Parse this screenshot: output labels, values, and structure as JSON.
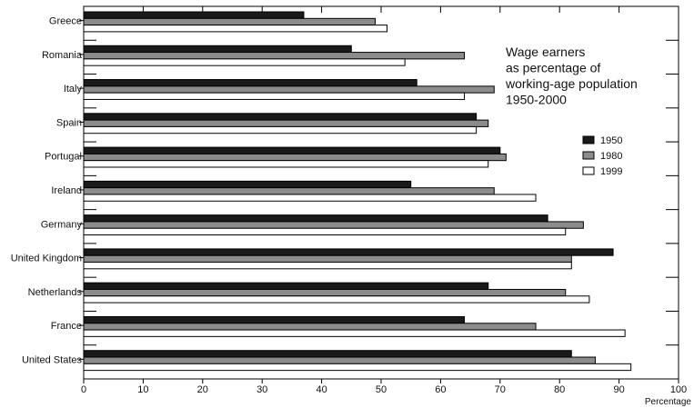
{
  "chart_data": {
    "type": "bar",
    "orientation": "horizontal",
    "title_lines": [
      "Wage earners",
      "as percentage of",
      "working-age population",
      "1950-2000"
    ],
    "xlabel": "Percentage",
    "ylabel": "",
    "xlim": [
      0,
      100
    ],
    "x_ticks": [
      0,
      10,
      20,
      30,
      40,
      50,
      60,
      70,
      80,
      90,
      100
    ],
    "grid": false,
    "legend_position": "right",
    "categories": [
      "Greece",
      "Romania",
      "Italy",
      "Spain",
      "Portugal",
      "Ireland",
      "Germany",
      "United Kingdom",
      "Netherlands",
      "France",
      "United States"
    ],
    "series": [
      {
        "name": "1950",
        "color": "#1a1a1a",
        "values": [
          37,
          45,
          56,
          66,
          70,
          55,
          78,
          89,
          68,
          64,
          82
        ]
      },
      {
        "name": "1980",
        "color": "#8c8c8c",
        "values": [
          49,
          64,
          69,
          68,
          71,
          69,
          84,
          82,
          81,
          76,
          86
        ]
      },
      {
        "name": "1999",
        "color": "#ffffff",
        "values": [
          51,
          54,
          64,
          66,
          68,
          76,
          81,
          82,
          85,
          91,
          92
        ]
      }
    ]
  }
}
